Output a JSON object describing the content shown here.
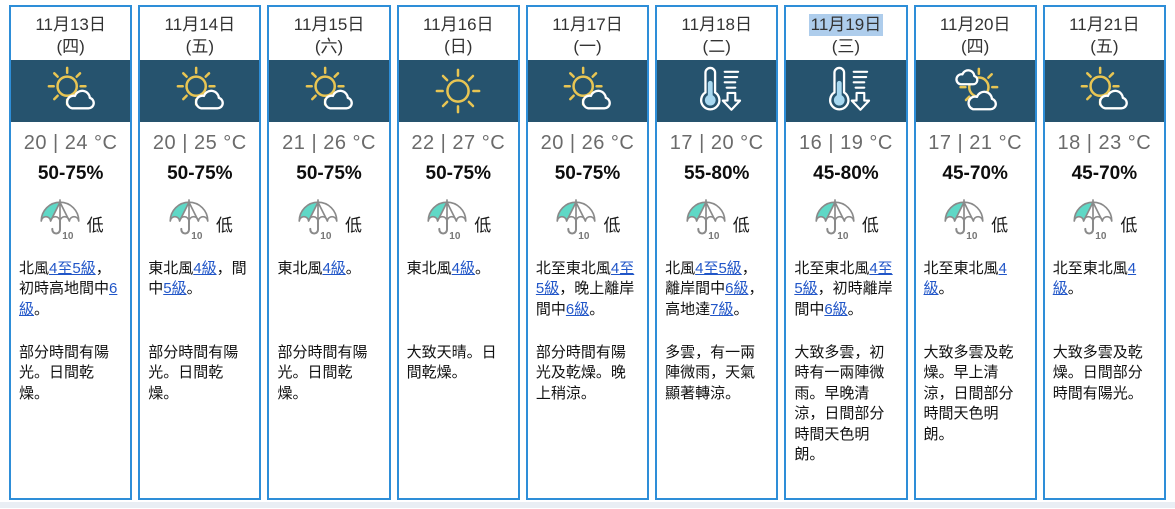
{
  "colors": {
    "border": "#2e8ed8",
    "band": "#26536e",
    "highlight": "#aecdec",
    "link": "#2156c8",
    "sun": "#e8c553",
    "mercury": "#a8d8f0",
    "umbrella": "#8a8a8a",
    "psr_teal": "#5fd8c6",
    "temp_text": "#6b6b6b"
  },
  "days": [
    {
      "date": "11月13日",
      "weekday": "(四)",
      "highlighted": false,
      "icon": "sun-cloud",
      "temp": "20 | 24 °C",
      "humidity": "50-75%",
      "psr_value": "10",
      "psr_label": "低",
      "wind": [
        {
          "t": "北風"
        },
        {
          "t": "4至5級",
          "link": true
        },
        {
          "t": "，初時高地間中"
        },
        {
          "t": "6級",
          "link": true
        },
        {
          "t": "。"
        }
      ],
      "desc": "部分時間有陽光。日間乾燥。"
    },
    {
      "date": "11月14日",
      "weekday": "(五)",
      "highlighted": false,
      "icon": "sun-cloud",
      "temp": "20 | 25 °C",
      "humidity": "50-75%",
      "psr_value": "10",
      "psr_label": "低",
      "wind": [
        {
          "t": "東北風"
        },
        {
          "t": "4級",
          "link": true
        },
        {
          "t": "，間中"
        },
        {
          "t": "5級",
          "link": true
        },
        {
          "t": "。"
        }
      ],
      "desc": "部分時間有陽光。日間乾燥。"
    },
    {
      "date": "11月15日",
      "weekday": "(六)",
      "highlighted": false,
      "icon": "sun-cloud",
      "temp": "21 | 26 °C",
      "humidity": "50-75%",
      "psr_value": "10",
      "psr_label": "低",
      "wind": [
        {
          "t": "東北風"
        },
        {
          "t": "4級",
          "link": true
        },
        {
          "t": "。"
        }
      ],
      "desc": "部分時間有陽光。日間乾燥。"
    },
    {
      "date": "11月16日",
      "weekday": "(日)",
      "highlighted": false,
      "icon": "sun",
      "temp": "22 | 27 °C",
      "humidity": "50-75%",
      "psr_value": "10",
      "psr_label": "低",
      "wind": [
        {
          "t": "東北風"
        },
        {
          "t": "4級",
          "link": true
        },
        {
          "t": "。"
        }
      ],
      "desc": "大致天晴。日間乾燥。"
    },
    {
      "date": "11月17日",
      "weekday": "(一)",
      "highlighted": false,
      "icon": "sun-cloud",
      "temp": "20 | 26 °C",
      "humidity": "50-75%",
      "psr_value": "10",
      "psr_label": "低",
      "wind": [
        {
          "t": "北至東北風"
        },
        {
          "t": "4至5級",
          "link": true
        },
        {
          "t": "，晚上離岸間中"
        },
        {
          "t": "6級",
          "link": true
        },
        {
          "t": "。"
        }
      ],
      "desc": "部分時間有陽光及乾燥。晚上稍涼。"
    },
    {
      "date": "11月18日",
      "weekday": "(二)",
      "highlighted": false,
      "icon": "temp-drop",
      "temp": "17 | 20 °C",
      "humidity": "55-80%",
      "psr_value": "10",
      "psr_label": "低",
      "wind": [
        {
          "t": "北風"
        },
        {
          "t": "4至5級",
          "link": true
        },
        {
          "t": "，離岸間中"
        },
        {
          "t": "6級",
          "link": true
        },
        {
          "t": "，高地達"
        },
        {
          "t": "7級",
          "link": true
        },
        {
          "t": "。"
        }
      ],
      "desc": "多雲，有一兩陣微雨，天氣顯著轉涼。"
    },
    {
      "date": "11月19日",
      "weekday": "(三)",
      "highlighted": true,
      "icon": "temp-drop",
      "temp": "16 | 19 °C",
      "humidity": "45-80%",
      "psr_value": "10",
      "psr_label": "低",
      "wind": [
        {
          "t": "北至東北風"
        },
        {
          "t": "4至5級",
          "link": true
        },
        {
          "t": "，初時離岸間中"
        },
        {
          "t": "6級",
          "link": true
        },
        {
          "t": "。"
        }
      ],
      "desc": "大致多雲，初時有一兩陣微雨。早晚清涼，日間部分時間天色明朗。"
    },
    {
      "date": "11月20日",
      "weekday": "(四)",
      "highlighted": false,
      "icon": "clouds-sun",
      "temp": "17 | 21 °C",
      "humidity": "45-70%",
      "psr_value": "10",
      "psr_label": "低",
      "wind": [
        {
          "t": "北至東北風"
        },
        {
          "t": "4級",
          "link": true
        },
        {
          "t": "。"
        }
      ],
      "desc": "大致多雲及乾燥。早上清涼，日間部分時間天色明朗。"
    },
    {
      "date": "11月21日",
      "weekday": "(五)",
      "highlighted": false,
      "icon": "sun-cloud",
      "temp": "18 | 23 °C",
      "humidity": "45-70%",
      "psr_value": "10",
      "psr_label": "低",
      "wind": [
        {
          "t": "北至東北風"
        },
        {
          "t": "4級",
          "link": true
        },
        {
          "t": "。"
        }
      ],
      "desc": "大致多雲及乾燥。日間部分時間有陽光。"
    }
  ]
}
